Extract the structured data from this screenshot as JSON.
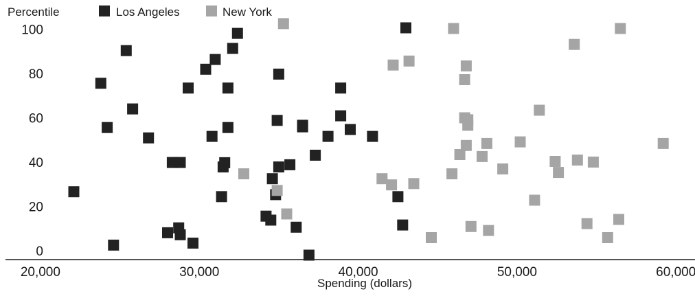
{
  "chart_data": {
    "type": "scatter",
    "title": "",
    "ylabel": "Percentile",
    "xlabel": "Spending (dollars)",
    "xlim": [
      17800,
      61200
    ],
    "ylim": [
      0,
      102
    ],
    "x_ticks": [
      20000,
      30000,
      40000,
      50000,
      60000
    ],
    "x_tick_labels": [
      "20,000",
      "30,000",
      "40,000",
      "50,000",
      "60,000"
    ],
    "y_ticks": [
      0,
      20,
      40,
      60,
      80,
      100
    ],
    "y_tick_labels": [
      "0",
      "20",
      "40",
      "60",
      "80",
      "100"
    ],
    "grid": false,
    "legend_position": "top-left",
    "series": [
      {
        "name": "Los Angeles",
        "color": "#222222",
        "marker": "square",
        "points": [
          [
            22100,
            26.6
          ],
          [
            23800,
            75.6
          ],
          [
            24200,
            55.6
          ],
          [
            24600,
            2.5
          ],
          [
            25400,
            90.3
          ],
          [
            25800,
            64
          ],
          [
            26800,
            50.9
          ],
          [
            28000,
            8.1
          ],
          [
            28300,
            39.8
          ],
          [
            28800,
            39.8
          ],
          [
            28700,
            10.3
          ],
          [
            28800,
            7.2
          ],
          [
            29300,
            73.4
          ],
          [
            29600,
            3.4
          ],
          [
            30400,
            81.9
          ],
          [
            30800,
            51.6
          ],
          [
            31000,
            86.3
          ],
          [
            31400,
            24.4
          ],
          [
            31500,
            37.8
          ],
          [
            31600,
            39.7
          ],
          [
            31800,
            73.4
          ],
          [
            31800,
            55.6
          ],
          [
            32100,
            91.3
          ],
          [
            32400,
            98.1
          ],
          [
            34200,
            15.6
          ],
          [
            34500,
            13.8
          ],
          [
            34600,
            32.5
          ],
          [
            34800,
            25.3
          ],
          [
            34900,
            58.8
          ],
          [
            35000,
            37.8
          ],
          [
            35000,
            79.7
          ],
          [
            35700,
            38.8
          ],
          [
            36100,
            10.6
          ],
          [
            36500,
            55.9
          ],
          [
            36500,
            56.6
          ],
          [
            36900,
            -2
          ],
          [
            37300,
            43.1
          ],
          [
            38100,
            51.6
          ],
          [
            38900,
            73.4
          ],
          [
            38900,
            60.9
          ],
          [
            39500,
            54.7
          ],
          [
            40900,
            51.6
          ],
          [
            42500,
            24.4
          ],
          [
            42800,
            11.6
          ],
          [
            43000,
            100.6
          ]
        ]
      },
      {
        "name": "New York",
        "color": "#a5a5a5",
        "marker": "square",
        "points": [
          [
            32800,
            34.7
          ],
          [
            34900,
            27.2
          ],
          [
            35300,
            102.5
          ],
          [
            35500,
            16.6
          ],
          [
            41500,
            32.5
          ],
          [
            42100,
            29.7
          ],
          [
            42200,
            83.8
          ],
          [
            43200,
            85.6
          ],
          [
            43500,
            30.3
          ],
          [
            44600,
            5.9
          ],
          [
            45900,
            34.7
          ],
          [
            46000,
            100.3
          ],
          [
            46400,
            43.4
          ],
          [
            46700,
            60
          ],
          [
            46700,
            77.2
          ],
          [
            46800,
            47.5
          ],
          [
            46800,
            83.4
          ],
          [
            46900,
            59.1
          ],
          [
            46900,
            56.6
          ],
          [
            47100,
            10.9
          ],
          [
            47800,
            42.5
          ],
          [
            48100,
            48.4
          ],
          [
            48200,
            9.1
          ],
          [
            49100,
            36.9
          ],
          [
            50200,
            49.1
          ],
          [
            51100,
            22.8
          ],
          [
            51400,
            63.4
          ],
          [
            52400,
            40.3
          ],
          [
            52600,
            35.3
          ],
          [
            53600,
            93.1
          ],
          [
            53800,
            40.9
          ],
          [
            54400,
            12.2
          ],
          [
            54800,
            40
          ],
          [
            55700,
            5.9
          ],
          [
            56400,
            14.1
          ],
          [
            56500,
            100.3
          ],
          [
            59200,
            48.4
          ]
        ]
      }
    ]
  }
}
